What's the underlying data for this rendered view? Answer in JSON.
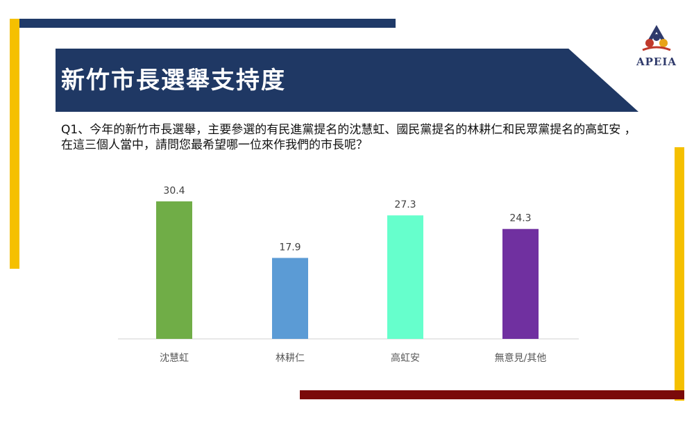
{
  "header": {
    "title": "新竹市長選舉支持度",
    "logo_text": "APEIA"
  },
  "question": "Q1、今年的新竹市長選舉，主要參選的有民進黨提名的沈慧虹、國民黨提名的林耕仁和民眾黨提名的高虹安 ，在這三個人當中，請問您最希望哪一位來作我們的市長呢？",
  "colors": {
    "navy": "#1f3864",
    "gold": "#f5c000",
    "dark_red": "#7a0a0a"
  },
  "chart_data": {
    "type": "bar",
    "categories": [
      "沈慧虹",
      "林耕仁",
      "高虹安",
      "無意見/其他"
    ],
    "values": [
      30.4,
      17.9,
      27.3,
      24.3
    ],
    "colors": [
      "#70ad47",
      "#5b9bd5",
      "#66ffcc",
      "#7030a0"
    ],
    "ylim": [
      0,
      35
    ],
    "grid": false,
    "legend": "none"
  }
}
